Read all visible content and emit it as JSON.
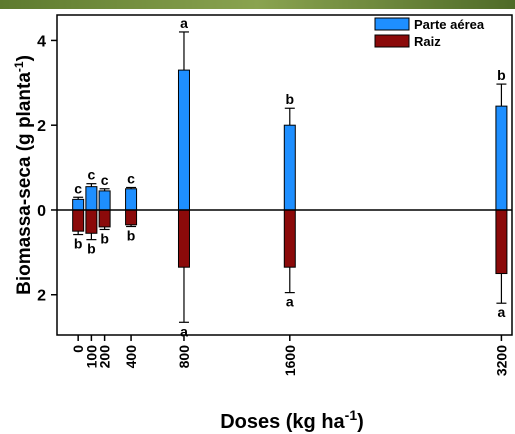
{
  "chart_data": {
    "type": "bar",
    "xlabel": {
      "text": "Doses (kg ha",
      "sup": "-1",
      "end": ")"
    },
    "ylabel": {
      "text": "Biomassa-seca (g planta",
      "sup": "-1",
      "end": ")"
    },
    "x": [
      0,
      100,
      200,
      400,
      800,
      1600,
      3200
    ],
    "xlim": [
      -160,
      3280
    ],
    "xticks": [
      0,
      100,
      200,
      400,
      800,
      1600,
      3200
    ],
    "ylim": [
      -2.95,
      4.6
    ],
    "yticks": [
      {
        "value": -2,
        "label": "2"
      },
      0,
      2,
      4
    ],
    "legend": "upper right",
    "series": [
      {
        "name": "Parte aérea",
        "color": "#1e8fff",
        "values": [
          0.25,
          0.55,
          0.45,
          0.5,
          3.3,
          2.0,
          2.45
        ],
        "errors": [
          0.05,
          0.07,
          0.05,
          0.03,
          0.9,
          0.4,
          0.52
        ],
        "letters": [
          "c",
          "c",
          "c",
          "c",
          "a",
          "b",
          "b"
        ]
      },
      {
        "name": "Raiz",
        "color": "#8b0a0a",
        "values": [
          -0.5,
          -0.55,
          -0.4,
          -0.35,
          -1.35,
          -1.35,
          -1.5
        ],
        "errors": [
          0.08,
          0.15,
          0.06,
          0.04,
          1.3,
          0.6,
          0.7
        ],
        "letters": [
          "b",
          "b",
          "b",
          "b",
          "a",
          "a",
          "a"
        ]
      }
    ]
  }
}
